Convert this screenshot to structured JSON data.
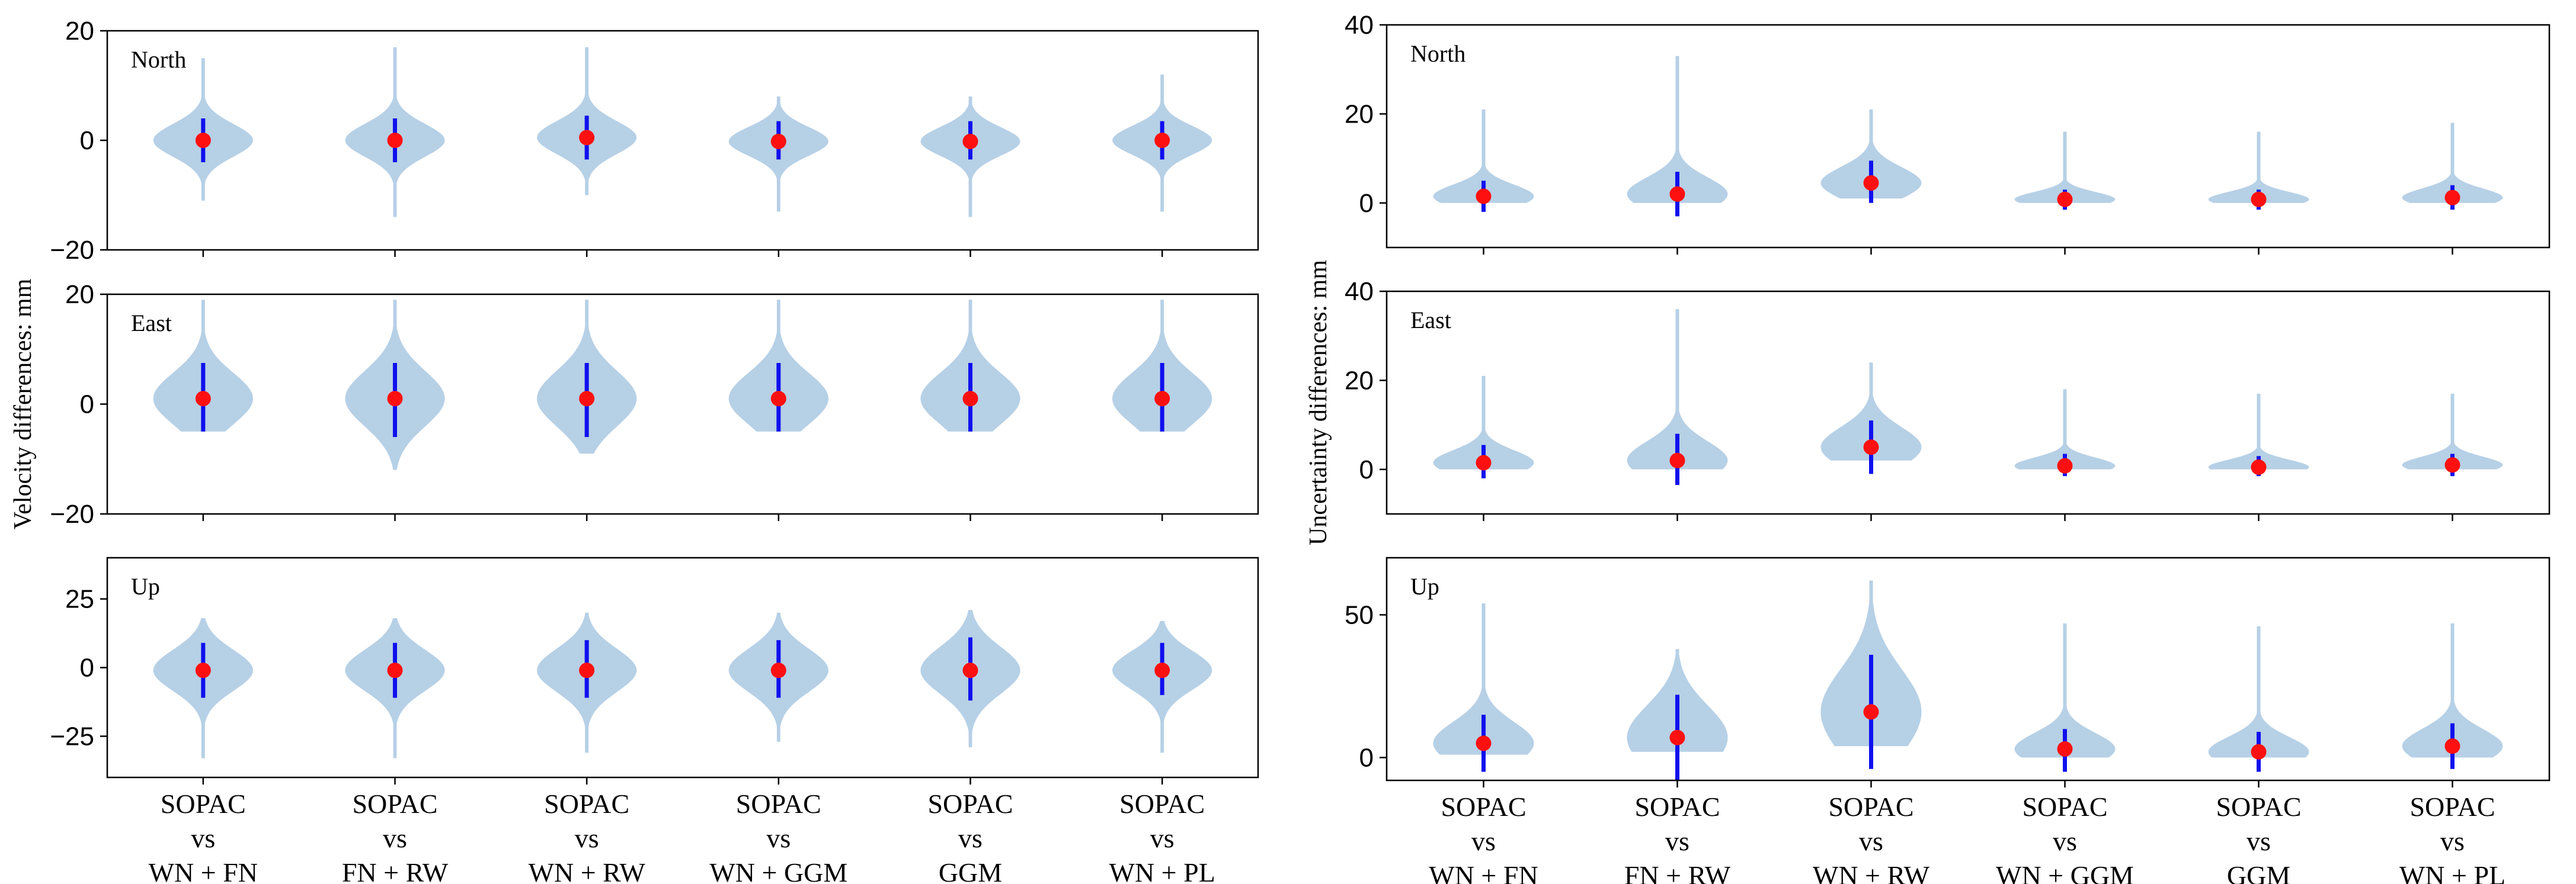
{
  "chart_data": [
    {
      "type": "violin",
      "ylabel": "Velocity differences: mm",
      "categories": [
        [
          "SOPAC",
          "vs",
          "WN + FN"
        ],
        [
          "SOPAC",
          "vs",
          "FN + RW"
        ],
        [
          "SOPAC",
          "vs",
          "WN + RW"
        ],
        [
          "SOPAC",
          "vs",
          "WN + GGM"
        ],
        [
          "SOPAC",
          "vs",
          "GGM"
        ],
        [
          "SOPAC",
          "vs",
          "WN + PL"
        ]
      ],
      "panels": [
        {
          "label": "North",
          "ylim": [
            -20,
            20
          ],
          "yticks": [
            -20,
            0,
            20
          ],
          "series": [
            {
              "median": 0.0,
              "q_low": -4,
              "q_high": 4,
              "min": -11,
              "max": 15
            },
            {
              "median": 0.0,
              "q_low": -4,
              "q_high": 4,
              "min": -14,
              "max": 17
            },
            {
              "median": 0.5,
              "q_low": -3.5,
              "q_high": 4.5,
              "min": -10,
              "max": 17
            },
            {
              "median": -0.2,
              "q_low": -3.5,
              "q_high": 3.5,
              "min": -13,
              "max": 8
            },
            {
              "median": -0.2,
              "q_low": -3.5,
              "q_high": 3.5,
              "min": -14,
              "max": 8
            },
            {
              "median": 0.0,
              "q_low": -3.5,
              "q_high": 3.5,
              "min": -13,
              "max": 12
            }
          ]
        },
        {
          "label": "East",
          "ylim": [
            -20,
            20
          ],
          "yticks": [
            -20,
            0,
            20
          ],
          "series": [
            {
              "median": 1.0,
              "q_low": -5,
              "q_high": 7.5,
              "min": -5,
              "max": 19
            },
            {
              "median": 1.0,
              "q_low": -6,
              "q_high": 7.5,
              "min": -12,
              "max": 19
            },
            {
              "median": 1.0,
              "q_low": -6,
              "q_high": 7.5,
              "min": -9,
              "max": 19
            },
            {
              "median": 1.0,
              "q_low": -5,
              "q_high": 7.5,
              "min": -5,
              "max": 19
            },
            {
              "median": 1.0,
              "q_low": -5,
              "q_high": 7.5,
              "min": -5,
              "max": 19
            },
            {
              "median": 1.0,
              "q_low": -5,
              "q_high": 7.5,
              "min": -5,
              "max": 19
            }
          ]
        },
        {
          "label": "Up",
          "ylim": [
            -40,
            40
          ],
          "yticks": [
            -25,
            0,
            25
          ],
          "series": [
            {
              "median": -1,
              "q_low": -11,
              "q_high": 9,
              "min": -33,
              "max": 18
            },
            {
              "median": -1,
              "q_low": -11,
              "q_high": 9,
              "min": -33,
              "max": 18
            },
            {
              "median": -1,
              "q_low": -11,
              "q_high": 10,
              "min": -31,
              "max": 20
            },
            {
              "median": -1,
              "q_low": -11,
              "q_high": 10,
              "min": -27,
              "max": 20
            },
            {
              "median": -1,
              "q_low": -12,
              "q_high": 11,
              "min": -29,
              "max": 21
            },
            {
              "median": -1,
              "q_low": -10,
              "q_high": 9,
              "min": -31,
              "max": 17
            }
          ]
        }
      ]
    },
    {
      "type": "violin",
      "ylabel": "Uncertainty differences: mm",
      "categories": [
        [
          "SOPAC",
          "vs",
          "WN + FN"
        ],
        [
          "SOPAC",
          "vs",
          "FN + RW"
        ],
        [
          "SOPAC",
          "vs",
          "WN + RW"
        ],
        [
          "SOPAC",
          "vs",
          "WN + GGM"
        ],
        [
          "SOPAC",
          "vs",
          "GGM"
        ],
        [
          "SOPAC",
          "vs",
          "WN + PL"
        ]
      ],
      "panels": [
        {
          "label": "North",
          "ylim": [
            -10,
            40
          ],
          "yticks": [
            0,
            20,
            40
          ],
          "series": [
            {
              "median": 1.5,
              "q_low": -2,
              "q_high": 5,
              "min": 0,
              "max": 21
            },
            {
              "median": 2,
              "q_low": -3,
              "q_high": 7,
              "min": 0,
              "max": 33
            },
            {
              "median": 4.5,
              "q_low": 0,
              "q_high": 9.5,
              "min": 1,
              "max": 21
            },
            {
              "median": 0.8,
              "q_low": -1.5,
              "q_high": 3,
              "min": 0,
              "max": 16
            },
            {
              "median": 0.8,
              "q_low": -1.5,
              "q_high": 3,
              "min": 0,
              "max": 16
            },
            {
              "median": 1.2,
              "q_low": -1.5,
              "q_high": 4,
              "min": 0,
              "max": 18
            }
          ]
        },
        {
          "label": "East",
          "ylim": [
            -10,
            40
          ],
          "yticks": [
            0,
            20,
            40
          ],
          "series": [
            {
              "median": 1.5,
              "q_low": -2,
              "q_high": 5.5,
              "min": 0,
              "max": 21
            },
            {
              "median": 2,
              "q_low": -3.5,
              "q_high": 8,
              "min": 0,
              "max": 36
            },
            {
              "median": 5,
              "q_low": -1,
              "q_high": 11,
              "min": 2,
              "max": 24
            },
            {
              "median": 0.8,
              "q_low": -1.5,
              "q_high": 3.5,
              "min": 0,
              "max": 18
            },
            {
              "median": 0.5,
              "q_low": -1.5,
              "q_high": 3,
              "min": 0,
              "max": 17
            },
            {
              "median": 1,
              "q_low": -1.5,
              "q_high": 3.5,
              "min": 0,
              "max": 17
            }
          ]
        },
        {
          "label": "Up",
          "ylim": [
            -8,
            70
          ],
          "yticks": [
            0,
            50
          ],
          "series": [
            {
              "median": 5,
              "q_low": -5,
              "q_high": 15,
              "min": 1,
              "max": 54
            },
            {
              "median": 7,
              "q_low": -8,
              "q_high": 22,
              "min": 2,
              "max": 38
            },
            {
              "median": 16,
              "q_low": -4,
              "q_high": 36,
              "min": 4,
              "max": 62
            },
            {
              "median": 3,
              "q_low": -5,
              "q_high": 10,
              "min": 0,
              "max": 47
            },
            {
              "median": 2,
              "q_low": -5,
              "q_high": 9,
              "min": 0,
              "max": 46
            },
            {
              "median": 4,
              "q_low": -4,
              "q_high": 12,
              "min": 0,
              "max": 47
            }
          ]
        }
      ]
    }
  ],
  "colors": {
    "violin": "#b6d0e6",
    "whisker": "#1010ee",
    "median": "#ff1010",
    "axis": "#000000"
  }
}
